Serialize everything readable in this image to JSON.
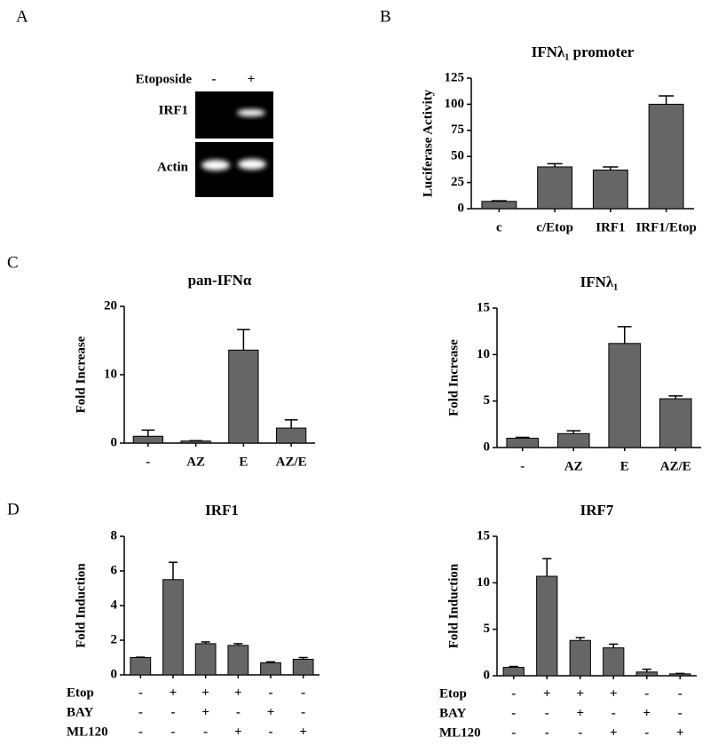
{
  "panels": [
    "A",
    "B",
    "C",
    "D"
  ],
  "blot": {
    "treatment": "Etoposide",
    "lanes": [
      "-",
      "+"
    ],
    "rows": [
      "IRF1",
      "Actin"
    ]
  },
  "chart_data": [
    {
      "type": "bar",
      "title": "IFNλ₁ promoter",
      "ylabel": "Luciferase Activity",
      "categories": [
        "c",
        "c/Etop",
        "IRF1",
        "IRF1/Etop"
      ],
      "values": [
        7,
        40,
        37,
        100
      ],
      "errors": [
        0.5,
        3,
        3,
        8
      ],
      "color": "#666666",
      "ylim": [
        0,
        125
      ],
      "yticks": [
        0,
        25,
        50,
        75,
        100,
        125
      ]
    },
    {
      "type": "bar",
      "title": "pan-IFNα",
      "ylabel": "Fold Increase",
      "categories": [
        "-",
        "AZ",
        "E",
        "AZ/E"
      ],
      "values": [
        1.0,
        0.3,
        13.6,
        2.2
      ],
      "errors": [
        0.9,
        0.05,
        3.0,
        1.2
      ],
      "color": "#666666",
      "ylim": [
        0,
        20
      ],
      "yticks": [
        0,
        10,
        20
      ]
    },
    {
      "type": "bar",
      "title": "IFNλ₁",
      "ylabel": "Fold Increase",
      "categories": [
        "-",
        "AZ",
        "E",
        "AZ/E"
      ],
      "values": [
        1.0,
        1.5,
        11.2,
        5.25
      ],
      "errors": [
        0.1,
        0.3,
        1.8,
        0.3
      ],
      "color": "#666666",
      "ylim": [
        0,
        15
      ],
      "yticks": [
        0,
        5,
        10,
        15
      ]
    },
    {
      "type": "bar",
      "title": "IRF1",
      "ylabel": "Fold Induction",
      "conditions": [
        {
          "label": "Etop",
          "signs": [
            "-",
            "+",
            "+",
            "+",
            "-",
            "-"
          ]
        },
        {
          "label": "BAY",
          "signs": [
            "-",
            "-",
            "+",
            "-",
            "+",
            "-"
          ]
        },
        {
          "label": "ML120",
          "signs": [
            "-",
            "-",
            "-",
            "+",
            "-",
            "+"
          ]
        }
      ],
      "values": [
        1.0,
        5.5,
        1.8,
        1.7,
        0.7,
        0.9
      ],
      "errors": [
        0.02,
        1.0,
        0.1,
        0.1,
        0.05,
        0.1
      ],
      "color": "#666666",
      "ylim": [
        0,
        8
      ],
      "yticks": [
        0,
        2,
        4,
        6,
        8
      ]
    },
    {
      "type": "bar",
      "title": "IRF7",
      "ylabel": "Fold Induction",
      "conditions": [
        {
          "label": "Etop",
          "signs": [
            "-",
            "+",
            "+",
            "+",
            "-",
            "-"
          ]
        },
        {
          "label": "BAY",
          "signs": [
            "-",
            "-",
            "+",
            "-",
            "+",
            "-"
          ]
        },
        {
          "label": "ML120",
          "signs": [
            "-",
            "-",
            "-",
            "+",
            "-",
            "+"
          ]
        }
      ],
      "values": [
        0.9,
        10.7,
        3.8,
        3.0,
        0.4,
        0.2
      ],
      "errors": [
        0.1,
        1.9,
        0.3,
        0.4,
        0.3,
        0.05
      ],
      "color": "#666666",
      "ylim": [
        0,
        15
      ],
      "yticks": [
        0,
        5,
        10,
        15
      ]
    }
  ]
}
